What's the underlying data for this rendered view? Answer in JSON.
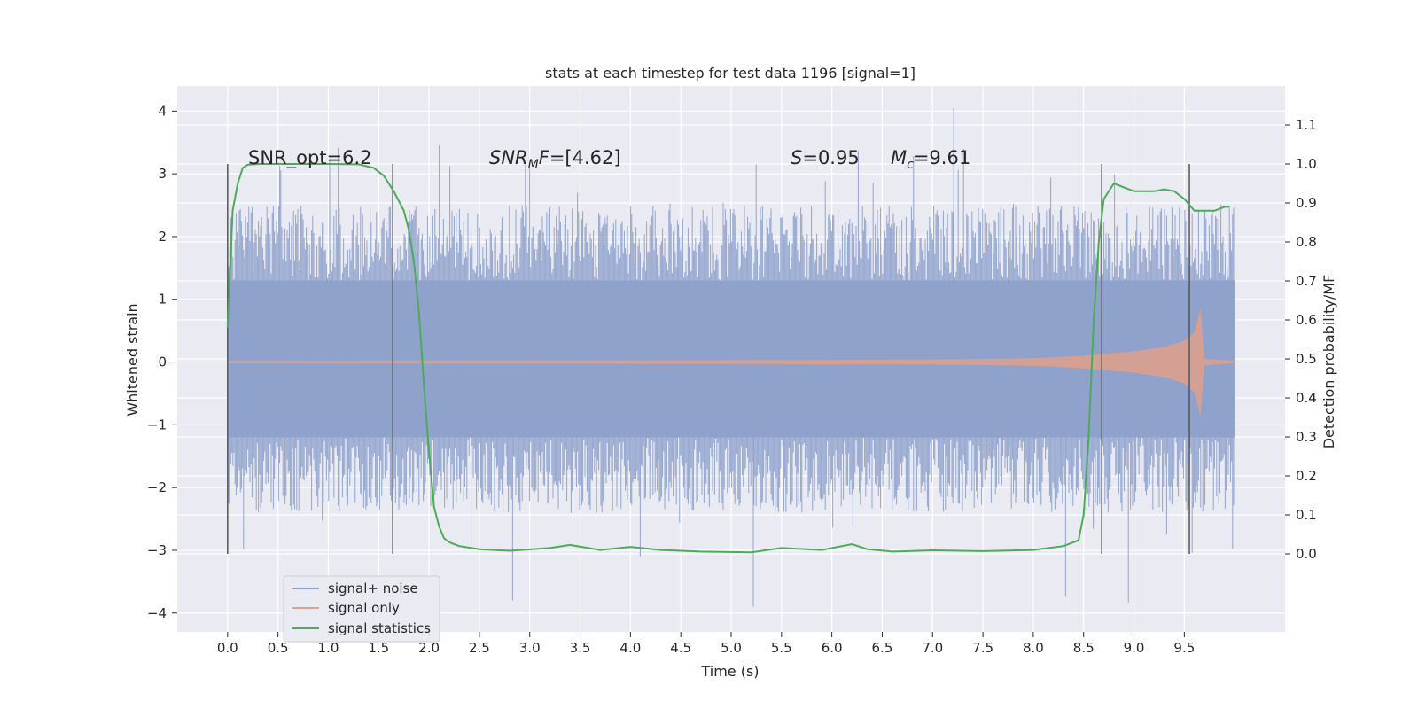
{
  "chart_data": {
    "type": "line",
    "title": "stats at each timestep for test data 1196 [signal=1]",
    "xlabel": "Time (s)",
    "ylabel": "Whitened strain",
    "ylabel_right": "Detection probability/MF",
    "xlim": [
      -0.5,
      10.5
    ],
    "ylim": [
      -4.3,
      4.4
    ],
    "ylim_right": [
      -0.2,
      1.2
    ],
    "x_ticks": [
      "0.0",
      "0.5",
      "1.0",
      "1.5",
      "2.0",
      "2.5",
      "3.0",
      "3.5",
      "4.0",
      "4.5",
      "5.0",
      "5.5",
      "6.0",
      "6.5",
      "7.0",
      "7.5",
      "8.0",
      "8.5",
      "9.0",
      "9.5"
    ],
    "y_ticks": [
      "4",
      "3",
      "2",
      "1",
      "0",
      "−1",
      "−2",
      "−3",
      "−4"
    ],
    "y_ticks_right": [
      "1.1",
      "1.0",
      "0.9",
      "0.8",
      "0.7",
      "0.6",
      "0.5",
      "0.4",
      "0.3",
      "0.2",
      "0.1",
      "0.0"
    ],
    "grid": true,
    "legend_position": "lower-left",
    "annotations": {
      "snr_opt": "SNR_opt=6.2",
      "snr_mf_main": "SNR",
      "snr_mf_sub": "M",
      "snr_mf_rest": "F",
      "snr_mf_value": "=[4.62]",
      "s_label": "S",
      "s_value": "=0.95",
      "mc_label": "M",
      "mc_sub": "c",
      "mc_value": "=9.61"
    },
    "vertical_markers_s": [
      0.0,
      1.64,
      8.68,
      9.55
    ],
    "series": [
      {
        "name": "signal+ noise",
        "color": "#8da0cb",
        "x_range": [
          0.0,
          10.0
        ],
        "envelope": {
          "dense_band": [
            -1.2,
            1.3
          ],
          "typical_peak": [
            -2.4,
            2.5
          ],
          "max": 4.05,
          "min": -3.9
        }
      },
      {
        "name": "signal only",
        "color": "#e1a08a",
        "x": [
          0.0,
          5.0,
          7.0,
          8.0,
          8.5,
          9.0,
          9.3,
          9.5,
          9.6,
          9.66,
          9.7,
          10.0
        ],
        "amplitude": [
          0.02,
          0.03,
          0.04,
          0.06,
          0.1,
          0.17,
          0.24,
          0.34,
          0.48,
          0.85,
          0.05,
          0.02
        ]
      },
      {
        "name": "signal statistics",
        "color": "#4daa57",
        "x": [
          0.0,
          0.05,
          0.1,
          0.15,
          0.2,
          0.3,
          0.5,
          1.0,
          1.3,
          1.45,
          1.55,
          1.65,
          1.75,
          1.8,
          1.85,
          1.9,
          1.95,
          2.0,
          2.05,
          2.1,
          2.15,
          2.2,
          2.3,
          2.5,
          2.8,
          3.2,
          3.4,
          3.7,
          4.0,
          4.3,
          4.7,
          5.2,
          5.5,
          5.9,
          6.1,
          6.2,
          6.35,
          6.6,
          7.0,
          7.5,
          8.0,
          8.3,
          8.45,
          8.5,
          8.55,
          8.6,
          8.65,
          8.7,
          8.8,
          8.9,
          9.0,
          9.2,
          9.3,
          9.4,
          9.5,
          9.6,
          9.7,
          9.8,
          9.9,
          9.95
        ],
        "values": [
          0.58,
          0.88,
          0.95,
          0.99,
          0.998,
          1.0,
          1.0,
          1.0,
          0.999,
          0.99,
          0.97,
          0.93,
          0.88,
          0.83,
          0.75,
          0.62,
          0.43,
          0.26,
          0.12,
          0.07,
          0.04,
          0.03,
          0.02,
          0.012,
          0.008,
          0.015,
          0.023,
          0.01,
          0.018,
          0.01,
          0.006,
          0.004,
          0.015,
          0.01,
          0.02,
          0.025,
          0.012,
          0.006,
          0.009,
          0.007,
          0.01,
          0.02,
          0.035,
          0.1,
          0.3,
          0.6,
          0.8,
          0.91,
          0.95,
          0.94,
          0.93,
          0.93,
          0.935,
          0.93,
          0.91,
          0.88,
          0.88,
          0.88,
          0.89,
          0.89
        ]
      }
    ]
  }
}
